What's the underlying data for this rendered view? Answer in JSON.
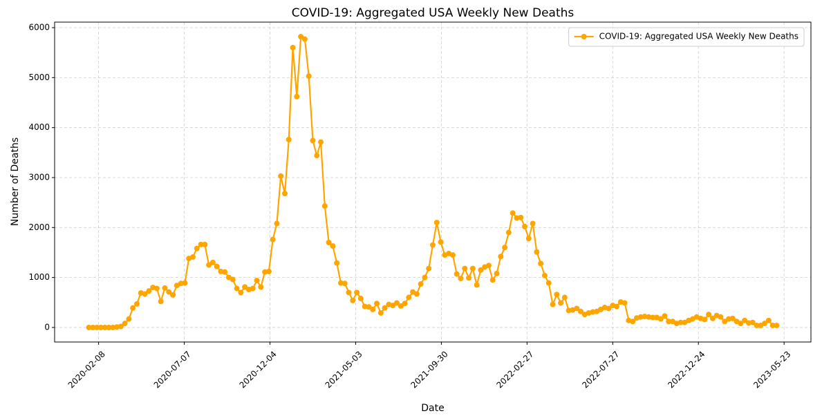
{
  "chart_data": {
    "type": "line",
    "title": "COVID-19: Aggregated USA Weekly New Deaths",
    "x_label": "Date",
    "y_label": "Number of Deaths",
    "x": [
      "2020-01-22",
      "2020-01-29",
      "2020-02-05",
      "2020-02-12",
      "2020-02-19",
      "2020-02-26",
      "2020-03-04",
      "2020-03-11",
      "2020-03-18",
      "2020-03-25",
      "2020-04-01",
      "2020-04-08",
      "2020-04-15",
      "2020-04-22",
      "2020-04-29",
      "2020-05-06",
      "2020-05-13",
      "2020-05-20",
      "2020-05-27",
      "2020-06-03",
      "2020-06-10",
      "2020-06-17",
      "2020-06-24",
      "2020-07-01",
      "2020-07-08",
      "2020-07-15",
      "2020-07-22",
      "2020-07-29",
      "2020-08-05",
      "2020-08-12",
      "2020-08-19",
      "2020-08-26",
      "2020-09-02",
      "2020-09-09",
      "2020-09-16",
      "2020-09-23",
      "2020-09-30",
      "2020-10-07",
      "2020-10-14",
      "2020-10-21",
      "2020-10-28",
      "2020-11-04",
      "2020-11-11",
      "2020-11-18",
      "2020-11-25",
      "2020-12-02",
      "2020-12-09",
      "2020-12-16",
      "2020-12-23",
      "2020-12-30",
      "2021-01-06",
      "2021-01-13",
      "2021-01-20",
      "2021-01-27",
      "2021-02-03",
      "2021-02-10",
      "2021-02-17",
      "2021-02-24",
      "2021-03-03",
      "2021-03-10",
      "2021-03-17",
      "2021-03-24",
      "2021-03-31",
      "2021-04-07",
      "2021-04-14",
      "2021-04-21",
      "2021-04-28",
      "2021-05-05",
      "2021-05-12",
      "2021-05-19",
      "2021-05-26",
      "2021-06-02",
      "2021-06-09",
      "2021-06-16",
      "2021-06-23",
      "2021-06-30",
      "2021-07-07",
      "2021-07-14",
      "2021-07-21",
      "2021-07-28",
      "2021-08-04",
      "2021-08-11",
      "2021-08-18",
      "2021-08-25",
      "2021-09-01",
      "2021-09-08",
      "2021-09-15",
      "2021-09-22",
      "2021-09-29",
      "2021-10-06",
      "2021-10-13",
      "2021-10-20",
      "2021-10-27",
      "2021-11-03",
      "2021-11-10",
      "2021-11-17",
      "2021-11-24",
      "2021-12-01",
      "2021-12-08",
      "2021-12-15",
      "2021-12-22",
      "2021-12-29",
      "2022-01-05",
      "2022-01-12",
      "2022-01-19",
      "2022-01-26",
      "2022-02-02",
      "2022-02-09",
      "2022-02-16",
      "2022-02-23",
      "2022-03-02",
      "2022-03-09",
      "2022-03-16",
      "2022-03-23",
      "2022-03-30",
      "2022-04-06",
      "2022-04-13",
      "2022-04-20",
      "2022-04-27",
      "2022-05-04",
      "2022-05-11",
      "2022-05-18",
      "2022-05-25",
      "2022-06-01",
      "2022-06-08",
      "2022-06-15",
      "2022-06-22",
      "2022-06-29",
      "2022-07-06",
      "2022-07-13",
      "2022-07-20",
      "2022-07-27",
      "2022-08-03",
      "2022-08-10",
      "2022-08-17",
      "2022-08-24",
      "2022-08-31",
      "2022-09-07",
      "2022-09-14",
      "2022-09-21",
      "2022-09-28",
      "2022-10-05",
      "2022-10-12",
      "2022-10-19",
      "2022-10-26",
      "2022-11-02",
      "2022-11-09",
      "2022-11-16",
      "2022-11-23",
      "2022-11-30",
      "2022-12-07",
      "2022-12-14",
      "2022-12-21",
      "2022-12-28",
      "2023-01-04",
      "2023-01-11",
      "2023-01-18",
      "2023-01-25",
      "2023-02-01",
      "2023-02-08",
      "2023-02-15",
      "2023-02-22",
      "2023-03-01",
      "2023-03-08",
      "2023-03-15",
      "2023-03-22",
      "2023-03-29",
      "2023-04-05",
      "2023-04-12",
      "2023-04-19",
      "2023-04-26",
      "2023-05-03",
      "2023-05-10"
    ],
    "series": [
      {
        "name": "COVID-19: Aggregated USA Weekly New Deaths",
        "color": "#ffa500",
        "values": [
          0,
          0,
          0,
          0,
          0,
          0,
          0,
          10,
          20,
          80,
          170,
          390,
          470,
          690,
          670,
          730,
          800,
          780,
          520,
          790,
          710,
          650,
          840,
          880,
          890,
          1380,
          1410,
          1580,
          1660,
          1660,
          1250,
          1300,
          1220,
          1120,
          1110,
          1000,
          960,
          780,
          700,
          810,
          760,
          780,
          940,
          810,
          1110,
          1120,
          1760,
          2080,
          3030,
          2680,
          3760,
          5600,
          4620,
          5820,
          5770,
          5030,
          3740,
          3440,
          3710,
          2430,
          1700,
          1630,
          1290,
          890,
          880,
          700,
          540,
          700,
          580,
          420,
          410,
          360,
          480,
          290,
          390,
          460,
          440,
          490,
          430,
          480,
          600,
          710,
          670,
          870,
          1000,
          1180,
          1650,
          2100,
          1710,
          1450,
          1480,
          1450,
          1070,
          980,
          1180,
          990,
          1180,
          850,
          1150,
          1210,
          1240,
          950,
          1080,
          1420,
          1600,
          1900,
          2290,
          2190,
          2200,
          2020,
          1780,
          2080,
          1510,
          1280,
          1040,
          890,
          460,
          660,
          490,
          600,
          340,
          350,
          380,
          320,
          260,
          290,
          310,
          320,
          360,
          400,
          380,
          440,
          420,
          510,
          490,
          140,
          120,
          190,
          210,
          220,
          210,
          200,
          200,
          170,
          230,
          120,
          120,
          80,
          100,
          100,
          140,
          170,
          210,
          180,
          160,
          260,
          180,
          240,
          210,
          120,
          170,
          180,
          120,
          80,
          140,
          90,
          100,
          40,
          40,
          80,
          140,
          40,
          40
        ]
      }
    ],
    "xlim": [
      "2019-11-23",
      "2023-07-09"
    ],
    "xticks": [
      "2020-02-08",
      "2020-07-07",
      "2020-12-04",
      "2021-05-03",
      "2021-09-30",
      "2022-02-27",
      "2022-07-27",
      "2022-12-24",
      "2023-05-23"
    ],
    "ylim": [
      -291,
      6111
    ],
    "yticks": [
      0,
      1000,
      2000,
      3000,
      4000,
      5000,
      6000
    ],
    "grid": true,
    "legend": "upper right"
  }
}
